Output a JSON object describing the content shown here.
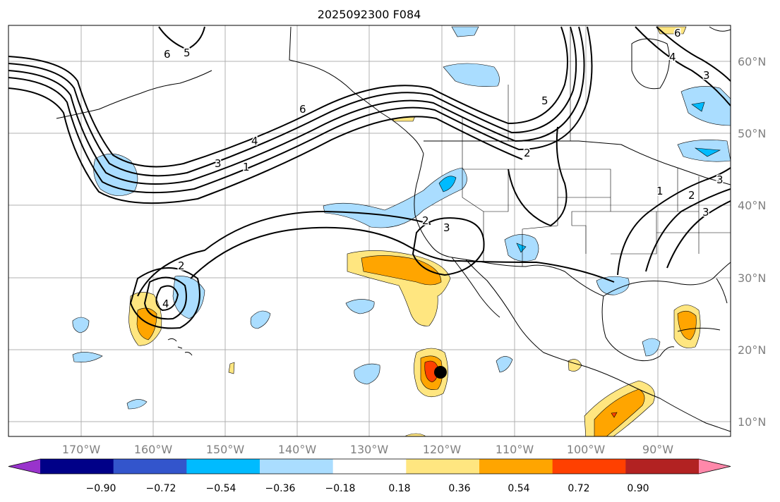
{
  "title": "2025092300 F084",
  "map": {
    "lon_ticks": [
      "170°W",
      "160°W",
      "150°W",
      "140°W",
      "130°W",
      "120°W",
      "110°W",
      "100°W",
      "90°W"
    ],
    "lat_ticks": [
      "60°N",
      "50°N",
      "40°N",
      "30°N",
      "20°N",
      "10°N"
    ],
    "contour_labels": [
      "6",
      "5",
      "6",
      "4",
      "3",
      "1",
      "5",
      "2",
      "1",
      "2",
      "3",
      "2",
      "3",
      "2",
      "4",
      "3",
      "6",
      "3",
      "4"
    ]
  },
  "colorbar": {
    "tick_labels": [
      "−0.90",
      "−0.72",
      "−0.54",
      "−0.36",
      "−0.18",
      "0.18",
      "0.36",
      "0.54",
      "0.72",
      "0.90"
    ],
    "colors": [
      "#9933cc",
      "#000088",
      "#3355cc",
      "#00bbff",
      "#aaddff",
      "#ffffff",
      "#ffe680",
      "#ffa500",
      "#ff4000",
      "#b22222",
      "#ff88aa"
    ]
  },
  "colors": {
    "pos1": "#ffe680",
    "pos2": "#ffa500",
    "pos3": "#ff4000",
    "neg1": "#aaddff",
    "neg2": "#00bbff",
    "axis_text": "#808080"
  }
}
